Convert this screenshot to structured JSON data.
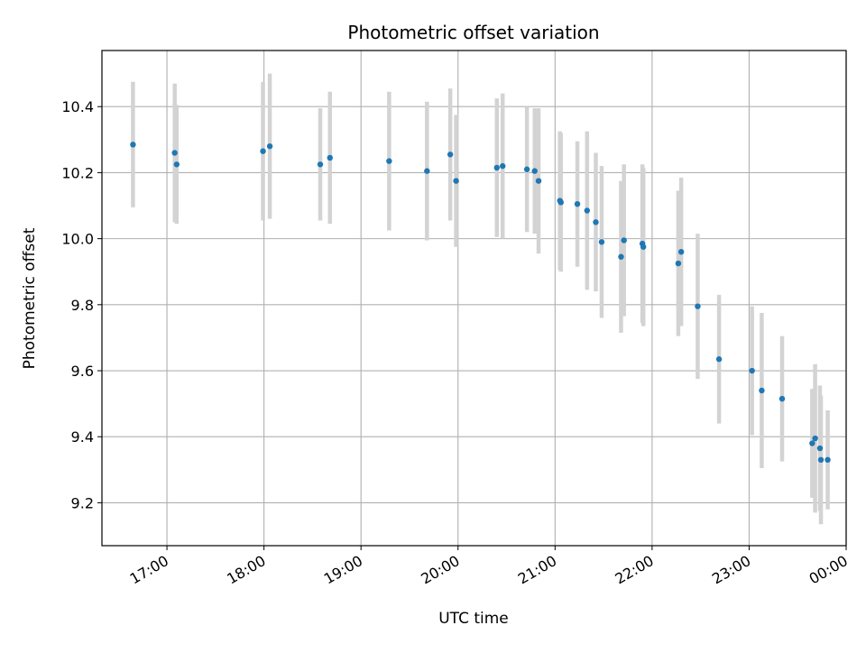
{
  "chart_data": {
    "type": "scatter",
    "title": "Photometric offset variation",
    "xlabel": "UTC time",
    "ylabel": "Photometric offset",
    "x_axis": "time (hours since 00:00 of first day; values > 24 are next day)",
    "xlim": [
      16.33,
      24.0
    ],
    "ylim": [
      9.07,
      10.57
    ],
    "x_ticks": [
      {
        "value": 17,
        "label": "17:00"
      },
      {
        "value": 18,
        "label": "18:00"
      },
      {
        "value": 19,
        "label": "19:00"
      },
      {
        "value": 20,
        "label": "20:00"
      },
      {
        "value": 21,
        "label": "21:00"
      },
      {
        "value": 22,
        "label": "22:00"
      },
      {
        "value": 23,
        "label": "23:00"
      },
      {
        "value": 24,
        "label": "00:00"
      }
    ],
    "y_ticks": [
      {
        "value": 9.2,
        "label": "9.2"
      },
      {
        "value": 9.4,
        "label": "9.4"
      },
      {
        "value": 9.6,
        "label": "9.6"
      },
      {
        "value": 9.8,
        "label": "9.8"
      },
      {
        "value": 10.0,
        "label": "10.0"
      },
      {
        "value": 10.2,
        "label": "10.2"
      },
      {
        "value": 10.4,
        "label": "10.4"
      }
    ],
    "grid": true,
    "marker_color": "#1f77b4",
    "errorbar_color": "#d3d3d3",
    "points": [
      {
        "x": 16.65,
        "y": 10.285,
        "err": 0.19
      },
      {
        "x": 17.08,
        "y": 10.26,
        "err": 0.21
      },
      {
        "x": 17.1,
        "y": 10.225,
        "err": 0.18
      },
      {
        "x": 17.99,
        "y": 10.265,
        "err": 0.21
      },
      {
        "x": 18.06,
        "y": 10.28,
        "err": 0.22
      },
      {
        "x": 18.58,
        "y": 10.225,
        "err": 0.17
      },
      {
        "x": 18.68,
        "y": 10.245,
        "err": 0.2
      },
      {
        "x": 19.29,
        "y": 10.235,
        "err": 0.21
      },
      {
        "x": 19.68,
        "y": 10.205,
        "err": 0.21
      },
      {
        "x": 19.92,
        "y": 10.255,
        "err": 0.2
      },
      {
        "x": 19.98,
        "y": 10.175,
        "err": 0.2
      },
      {
        "x": 20.4,
        "y": 10.215,
        "err": 0.21
      },
      {
        "x": 20.46,
        "y": 10.22,
        "err": 0.22
      },
      {
        "x": 20.71,
        "y": 10.21,
        "err": 0.19
      },
      {
        "x": 20.79,
        "y": 10.205,
        "err": 0.19
      },
      {
        "x": 20.83,
        "y": 10.175,
        "err": 0.22
      },
      {
        "x": 21.05,
        "y": 10.115,
        "err": 0.21
      },
      {
        "x": 21.06,
        "y": 10.11,
        "err": 0.21
      },
      {
        "x": 21.23,
        "y": 10.105,
        "err": 0.19
      },
      {
        "x": 21.33,
        "y": 10.085,
        "err": 0.24
      },
      {
        "x": 21.42,
        "y": 10.05,
        "err": 0.21
      },
      {
        "x": 21.48,
        "y": 9.99,
        "err": 0.23
      },
      {
        "x": 21.68,
        "y": 9.945,
        "err": 0.23
      },
      {
        "x": 21.71,
        "y": 9.995,
        "err": 0.23
      },
      {
        "x": 21.9,
        "y": 9.985,
        "err": 0.24
      },
      {
        "x": 21.91,
        "y": 9.975,
        "err": 0.24
      },
      {
        "x": 22.27,
        "y": 9.925,
        "err": 0.22
      },
      {
        "x": 22.3,
        "y": 9.96,
        "err": 0.225
      },
      {
        "x": 22.47,
        "y": 9.795,
        "err": 0.22
      },
      {
        "x": 22.69,
        "y": 9.635,
        "err": 0.195
      },
      {
        "x": 23.03,
        "y": 9.6,
        "err": 0.195
      },
      {
        "x": 23.13,
        "y": 9.54,
        "err": 0.235
      },
      {
        "x": 23.34,
        "y": 9.515,
        "err": 0.19
      },
      {
        "x": 23.65,
        "y": 9.38,
        "err": 0.165
      },
      {
        "x": 23.68,
        "y": 9.395,
        "err": 0.225
      },
      {
        "x": 23.73,
        "y": 9.365,
        "err": 0.19
      },
      {
        "x": 23.74,
        "y": 9.33,
        "err": 0.195
      },
      {
        "x": 23.81,
        "y": 9.33,
        "err": 0.15
      }
    ]
  }
}
